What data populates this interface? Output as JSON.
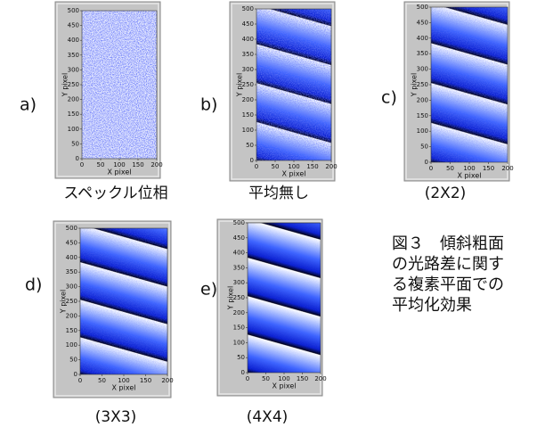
{
  "panels": [
    {
      "letter": "a)",
      "caption": "スペックル位相",
      "y_label": "Y pixel",
      "x_label": "X pixel",
      "yticks": [
        0,
        50,
        100,
        150,
        200,
        250,
        300,
        350,
        400,
        450,
        500
      ],
      "xticks": [
        0,
        50,
        100,
        150,
        200
      ]
    },
    {
      "letter": "b)",
      "caption": "平均無し",
      "y_label": "Y pixel",
      "x_label": "X pixel",
      "yticks": [
        0,
        50,
        100,
        150,
        200,
        250,
        300,
        350,
        400,
        450,
        500
      ],
      "xticks": [
        0,
        50,
        100,
        150,
        200
      ]
    },
    {
      "letter": "c)",
      "caption": "(2X2)",
      "y_label": "Y pixel",
      "x_label": "X pixel",
      "yticks": [
        0,
        50,
        100,
        150,
        200,
        250,
        300,
        350,
        400,
        450,
        500
      ],
      "xticks": [
        0,
        50,
        100,
        150,
        200
      ]
    },
    {
      "letter": "d)",
      "caption": "(3X3)",
      "y_label": "Y pixel",
      "x_label": "X pixel",
      "yticks": [
        0,
        50,
        100,
        150,
        200,
        250,
        300,
        350,
        400,
        450,
        500
      ],
      "xticks": [
        0,
        50,
        100,
        150,
        200
      ]
    },
    {
      "letter": "e)",
      "caption": "(4X4)",
      "y_label": "Y pixel",
      "x_label": "X pixel",
      "yticks": [
        0,
        50,
        100,
        150,
        200,
        250,
        300,
        350,
        400,
        450,
        500
      ],
      "xticks": [
        0,
        50,
        100,
        150,
        200
      ]
    }
  ],
  "figure_caption": [
    "図３　傾斜粗面",
    "の光路差に関す",
    "る複素平面での",
    "平均化効果"
  ]
}
